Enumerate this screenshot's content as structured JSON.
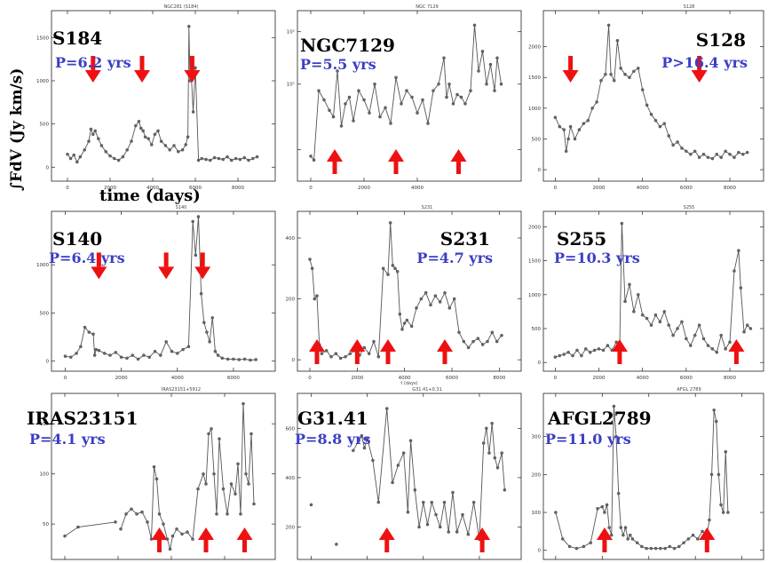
{
  "figure": {
    "ylabel": "∫FdV (Jy km/s)",
    "xlabel": "time (days)",
    "period_color": "#3a3fc4",
    "arrow_color": "#ee1111",
    "line_color": "#555555"
  },
  "chart_data": [
    {
      "type": "line",
      "name": "S184",
      "small_title": "NGC281 (S184)",
      "period": "P=6.2 yrs",
      "xlim": [
        -500,
        9500
      ],
      "ylim": [
        -100,
        1750
      ],
      "xticks": [
        0,
        2000,
        4000,
        6000,
        8000
      ],
      "yticks": [
        0,
        500,
        1000,
        1500
      ],
      "ytick_labels": [
        "0",
        "500",
        "1000",
        "1500"
      ],
      "x": [
        0,
        150,
        300,
        450,
        600,
        800,
        1000,
        1100,
        1200,
        1300,
        1450,
        1600,
        1800,
        2000,
        2200,
        2400,
        2600,
        2800,
        3000,
        3200,
        3350,
        3450,
        3550,
        3650,
        3800,
        3950,
        4100,
        4250,
        4400,
        4600,
        4800,
        5000,
        5200,
        5400,
        5550,
        5650,
        5700,
        5750,
        5800,
        5900,
        6000,
        6150,
        6300,
        6500,
        6700,
        6900,
        7100,
        7300,
        7500,
        7700,
        7900,
        8100,
        8300,
        8500,
        8700,
        8900
      ],
      "y": [
        150,
        100,
        140,
        60,
        120,
        200,
        300,
        440,
        380,
        420,
        330,
        250,
        180,
        130,
        100,
        80,
        120,
        200,
        300,
        480,
        530,
        450,
        420,
        350,
        330,
        260,
        380,
        420,
        300,
        250,
        200,
        250,
        180,
        200,
        260,
        350,
        1630,
        1000,
        1100,
        640,
        1150,
        80,
        100,
        90,
        80,
        110,
        100,
        90,
        120,
        80,
        100,
        90,
        110,
        80,
        100,
        120
      ],
      "arrows": [
        {
          "x": 1200,
          "dir": "down"
        },
        {
          "x": 3500,
          "dir": "down"
        },
        {
          "x": 5850,
          "dir": "down"
        }
      ]
    },
    {
      "type": "line",
      "name": "NGC7129",
      "small_title": "NGC 7129",
      "period": "P=5.5 yrs",
      "xlim": [
        -300,
        7700
      ],
      "ylim": [
        0.3,
        1.52
      ],
      "yscale": "log",
      "xticks": [
        0,
        2000,
        4000
      ],
      "yticks": [
        0.5,
        1.0,
        1.4
      ],
      "ytick_labels": [
        "",
        "10¹",
        "10²"
      ],
      "x": [
        0,
        120,
        300,
        500,
        700,
        850,
        1000,
        1150,
        1300,
        1450,
        1600,
        1800,
        2000,
        2200,
        2400,
        2600,
        2800,
        3000,
        3200,
        3400,
        3600,
        3800,
        4000,
        4200,
        4400,
        4600,
        4800,
        5000,
        5100,
        5200,
        5350,
        5500,
        5650,
        5800,
        6000,
        6150,
        6300,
        6450,
        6600,
        6750,
        6900,
        7000,
        7150
      ],
      "y": [
        0.45,
        0.42,
        0.95,
        0.88,
        0.8,
        0.75,
        1.1,
        0.68,
        0.85,
        0.9,
        0.72,
        0.95,
        0.88,
        0.78,
        1.0,
        0.75,
        0.82,
        0.7,
        1.05,
        0.85,
        0.95,
        0.9,
        0.78,
        0.88,
        0.7,
        0.95,
        1.0,
        1.2,
        0.9,
        1.0,
        0.85,
        0.92,
        0.9,
        0.85,
        0.95,
        1.45,
        1.1,
        1.25,
        1.0,
        1.15,
        0.95,
        1.2,
        1.0
      ],
      "arrows": [
        {
          "x": 900,
          "dir": "up"
        },
        {
          "x": 3200,
          "dir": "up"
        },
        {
          "x": 5550,
          "dir": "up"
        }
      ]
    },
    {
      "type": "line",
      "name": "S128",
      "small_title": "S128",
      "period": "P>16.4 yrs",
      "xlim": [
        -300,
        9300
      ],
      "ylim": [
        -100,
        2500
      ],
      "xticks": [
        0,
        2000,
        4000,
        6000,
        8000
      ],
      "yticks": [
        0,
        500,
        1000,
        1500,
        2000
      ],
      "ytick_labels": [
        "0",
        "500",
        "1000",
        "1500",
        "2000"
      ],
      "x": [
        0,
        200,
        400,
        500,
        600,
        700,
        900,
        1100,
        1300,
        1500,
        1700,
        1900,
        2100,
        2300,
        2450,
        2550,
        2700,
        2850,
        3000,
        3200,
        3400,
        3600,
        3800,
        4000,
        4200,
        4400,
        4600,
        4800,
        5000,
        5200,
        5400,
        5600,
        5800,
        6000,
        6200,
        6400,
        6600,
        6800,
        7000,
        7200,
        7400,
        7600,
        7800,
        8000,
        8200,
        8400,
        8600,
        8800
      ],
      "y": [
        850,
        700,
        650,
        300,
        500,
        700,
        500,
        650,
        750,
        800,
        1000,
        1100,
        1450,
        1550,
        2350,
        1550,
        1450,
        2100,
        1650,
        1550,
        1500,
        1600,
        1650,
        1300,
        1050,
        900,
        800,
        700,
        750,
        550,
        400,
        450,
        350,
        300,
        250,
        300,
        200,
        250,
        200,
        180,
        250,
        200,
        300,
        250,
        200,
        280,
        250,
        280
      ],
      "arrows": [
        {
          "x": 700,
          "dir": "down"
        },
        {
          "x": 6600,
          "dir": "down"
        }
      ]
    },
    {
      "type": "line",
      "name": "S140",
      "small_title": "S140",
      "period": "P=6.4 yrs",
      "xlim": [
        -300,
        7300
      ],
      "ylim": [
        -50,
        1500
      ],
      "xticks": [
        0,
        2000,
        4000,
        6000
      ],
      "yticks": [
        0,
        500,
        1000
      ],
      "ytick_labels": [
        "0",
        "500",
        "1000"
      ],
      "x": [
        0,
        200,
        400,
        550,
        700,
        850,
        1000,
        1050,
        1100,
        1200,
        1400,
        1600,
        1800,
        2000,
        2200,
        2400,
        2600,
        2800,
        3000,
        3200,
        3400,
        3600,
        3800,
        4000,
        4200,
        4400,
        4550,
        4650,
        4750,
        4850,
        4950,
        5050,
        5150,
        5250,
        5350,
        5450,
        5600,
        5800,
        6000,
        6200,
        6400,
        6600,
        6800
      ],
      "y": [
        50,
        40,
        80,
        150,
        350,
        300,
        280,
        60,
        120,
        110,
        80,
        60,
        90,
        40,
        30,
        60,
        20,
        60,
        40,
        100,
        60,
        200,
        100,
        80,
        120,
        150,
        1450,
        1100,
        1500,
        700,
        400,
        300,
        200,
        450,
        100,
        60,
        30,
        20,
        20,
        15,
        20,
        10,
        15
      ],
      "arrows": [
        {
          "x": 1200,
          "dir": "down"
        },
        {
          "x": 3600,
          "dir": "down"
        },
        {
          "x": 4900,
          "dir": "down"
        }
      ]
    },
    {
      "type": "line",
      "name": "S231",
      "small_title": "S231",
      "period": "P=4.7 yrs",
      "xlabel_small": "t (days)",
      "xlim": [
        -300,
        8700
      ],
      "ylim": [
        -20,
        470
      ],
      "xticks": [
        0,
        2000,
        4000,
        6000,
        8000
      ],
      "yticks": [
        0,
        200,
        400
      ],
      "ytick_labels": [
        "0",
        "200",
        "400"
      ],
      "x": [
        0,
        100,
        200,
        300,
        400,
        500,
        700,
        900,
        1100,
        1300,
        1500,
        1700,
        1900,
        2100,
        2300,
        2500,
        2700,
        2900,
        3100,
        3300,
        3400,
        3500,
        3600,
        3700,
        3800,
        3900,
        4000,
        4100,
        4300,
        4500,
        4700,
        4900,
        5100,
        5300,
        5500,
        5700,
        5900,
        6100,
        6300,
        6500,
        6700,
        6900,
        7100,
        7300,
        7500,
        7700,
        7900,
        8100
      ],
      "y": [
        330,
        300,
        200,
        210,
        50,
        20,
        30,
        10,
        20,
        5,
        10,
        20,
        30,
        15,
        40,
        20,
        60,
        10,
        300,
        280,
        450,
        310,
        300,
        290,
        150,
        100,
        120,
        130,
        110,
        170,
        200,
        220,
        180,
        210,
        190,
        220,
        170,
        200,
        90,
        60,
        40,
        60,
        70,
        50,
        60,
        90,
        60,
        80
      ],
      "arrows": [
        {
          "x": 300,
          "dir": "up"
        },
        {
          "x": 2000,
          "dir": "up"
        },
        {
          "x": 3300,
          "dir": "up"
        },
        {
          "x": 5700,
          "dir": "up"
        }
      ]
    },
    {
      "type": "line",
      "name": "S255",
      "small_title": "S255",
      "period": "P=10.3 yrs",
      "xlim": [
        -300,
        9300
      ],
      "ylim": [
        -50,
        2150
      ],
      "xticks": [
        0,
        2000,
        4000,
        6000,
        8000
      ],
      "yticks": [
        0,
        500,
        1000,
        1500,
        2000
      ],
      "ytick_labels": [
        "0",
        "500",
        "1000",
        "1500",
        "2000"
      ],
      "x": [
        0,
        200,
        400,
        600,
        800,
        1000,
        1200,
        1400,
        1600,
        1800,
        2000,
        2200,
        2400,
        2600,
        2800,
        2950,
        3050,
        3200,
        3400,
        3600,
        3800,
        4000,
        4200,
        4400,
        4600,
        4800,
        5000,
        5200,
        5400,
        5600,
        5800,
        6000,
        6200,
        6400,
        6600,
        6800,
        7000,
        7200,
        7400,
        7600,
        7800,
        8000,
        8200,
        8400,
        8500,
        8650,
        8800,
        8950
      ],
      "y": [
        80,
        100,
        120,
        150,
        100,
        180,
        100,
        200,
        150,
        180,
        200,
        180,
        250,
        180,
        300,
        200,
        2050,
        900,
        1150,
        750,
        1000,
        700,
        650,
        550,
        700,
        600,
        750,
        550,
        400,
        500,
        600,
        350,
        250,
        400,
        550,
        350,
        250,
        200,
        150,
        400,
        200,
        300,
        1350,
        1650,
        1100,
        450,
        550,
        500
      ],
      "arrows": [
        {
          "x": 2950,
          "dir": "up"
        },
        {
          "x": 8300,
          "dir": "up"
        }
      ]
    },
    {
      "type": "line",
      "name": "IRAS23151",
      "small_title": "IRAS23151+5912",
      "period": "P=4.1 yrs",
      "xlim": [
        -300,
        7700
      ],
      "ylim": [
        20,
        175
      ],
      "xticks": [
        0,
        2000,
        4000,
        6000
      ],
      "yticks": [
        50,
        100,
        150
      ],
      "ytick_labels": [
        "50",
        "100",
        "150"
      ],
      "segments": [
        [
          0,
          2
        ]
      ],
      "x": [
        0,
        500,
        1900,
        2100,
        2300,
        2500,
        2700,
        2900,
        3100,
        3250,
        3350,
        3450,
        3550,
        3700,
        3850,
        3950,
        4050,
        4200,
        4400,
        4600,
        4800,
        5000,
        5200,
        5300,
        5400,
        5500,
        5600,
        5700,
        5800,
        5950,
        6100,
        6250,
        6400,
        6500,
        6600,
        6700,
        6800,
        6900,
        7000,
        7100
      ],
      "y": [
        38,
        47,
        52,
        45,
        60,
        65,
        60,
        62,
        52,
        35,
        107,
        95,
        60,
        50,
        35,
        25,
        38,
        45,
        40,
        42,
        35,
        85,
        100,
        90,
        140,
        145,
        100,
        60,
        135,
        85,
        60,
        90,
        80,
        110,
        60,
        170,
        100,
        90,
        140,
        70
      ],
      "arrows": [
        {
          "x": 3550,
          "dir": "up"
        },
        {
          "x": 5300,
          "dir": "up"
        },
        {
          "x": 6750,
          "dir": "up"
        }
      ]
    },
    {
      "type": "line",
      "name": "G31.41",
      "small_title": "G31.41+0.31",
      "period": "P=8.8 yrs",
      "xlim": [
        -300,
        7300
      ],
      "ylim": [
        90,
        720
      ],
      "xticks": [
        0,
        2000,
        4000,
        6000
      ],
      "yticks": [
        200,
        400,
        600
      ],
      "ytick_labels": [
        "200",
        "400",
        "600"
      ],
      "segments": [
        [
          0,
          0
        ],
        [
          1,
          1
        ]
      ],
      "x": [
        0,
        900,
        1500,
        1700,
        1800,
        1900,
        2000,
        2200,
        2400,
        2700,
        2900,
        3100,
        3300,
        3450,
        3550,
        3700,
        3850,
        4000,
        4150,
        4300,
        4450,
        4600,
        4750,
        4900,
        5050,
        5200,
        5400,
        5600,
        5800,
        6000,
        6150,
        6250,
        6350,
        6450,
        6550,
        6650,
        6800,
        6900
      ],
      "y": [
        290,
        130,
        510,
        550,
        570,
        520,
        560,
        470,
        300,
        680,
        380,
        450,
        500,
        260,
        550,
        350,
        200,
        300,
        210,
        300,
        250,
        200,
        300,
        180,
        340,
        180,
        250,
        170,
        300,
        150,
        540,
        600,
        500,
        620,
        480,
        440,
        500,
        350
      ],
      "arrows": [
        {
          "x": 2700,
          "dir": "up"
        },
        {
          "x": 6100,
          "dir": "up"
        }
      ]
    },
    {
      "type": "line",
      "name": "AFGL2789",
      "small_title": "AFGL 2789",
      "period": "P=11.0 yrs",
      "xlim": [
        -300,
        8700
      ],
      "ylim": [
        -10,
        400
      ],
      "xticks": [
        0,
        2000,
        4000,
        6000,
        8000
      ],
      "yticks": [
        0,
        100,
        200,
        300
      ],
      "ytick_labels": [
        "0",
        "100",
        "200",
        "300"
      ],
      "x": [
        0,
        300,
        600,
        900,
        1200,
        1500,
        1800,
        2000,
        2100,
        2200,
        2300,
        2400,
        2500,
        2600,
        2700,
        2800,
        2900,
        3000,
        3100,
        3200,
        3300,
        3500,
        3700,
        3900,
        4100,
        4300,
        4500,
        4700,
        4900,
        5100,
        5300,
        5500,
        5700,
        5900,
        6100,
        6300,
        6500,
        6600,
        6700,
        6800,
        6900,
        7000,
        7100,
        7200,
        7300,
        7400
      ],
      "y": [
        100,
        30,
        10,
        5,
        10,
        20,
        110,
        115,
        100,
        120,
        60,
        40,
        380,
        300,
        150,
        60,
        40,
        60,
        30,
        40,
        30,
        20,
        10,
        5,
        5,
        5,
        5,
        5,
        10,
        5,
        10,
        20,
        30,
        40,
        30,
        50,
        40,
        80,
        200,
        370,
        340,
        200,
        120,
        100,
        260,
        100
      ],
      "arrows": [
        {
          "x": 2100,
          "dir": "up"
        },
        {
          "x": 6500,
          "dir": "up"
        }
      ]
    }
  ]
}
